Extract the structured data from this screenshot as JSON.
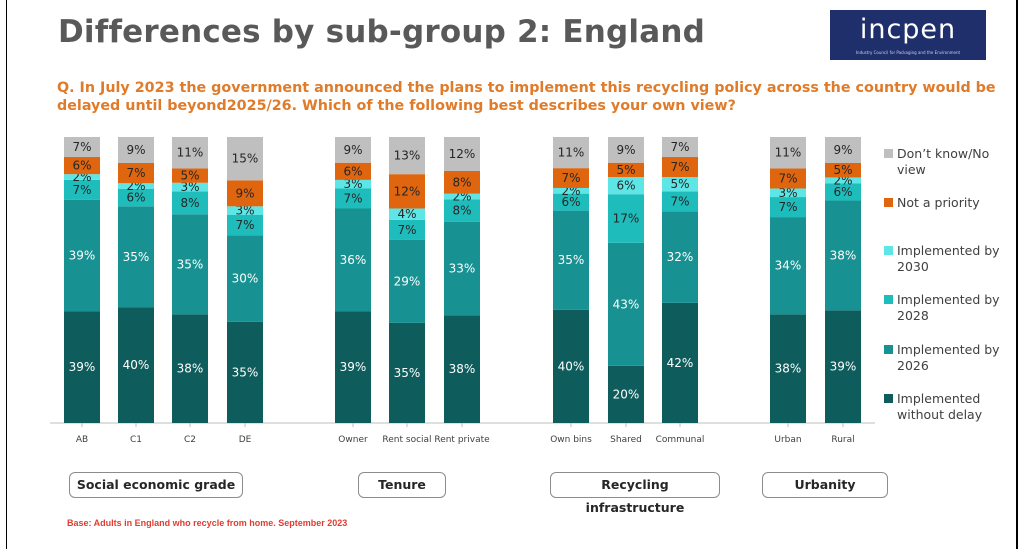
{
  "page": {
    "title": "Differences by sub-group 2: England",
    "logo_text": "incpen",
    "logo_subtext": "Industry Council for Packaging and the Environment",
    "question": "Q. In July 2023 the government announced the plans to implement this recycling policy across the country would be delayed until beyond2025/26. Which of the following best describes your own view?",
    "base_note": "Base: Adults in England who recycle from home. September 2023"
  },
  "groups": [
    {
      "label": "Social economic grade"
    },
    {
      "label": "Tenure"
    },
    {
      "label": "Recycling infrastructure"
    },
    {
      "label": "Urbanity"
    }
  ],
  "chart_data": {
    "type": "bar",
    "stacked": true,
    "percent_labels": true,
    "categories": [
      "AB",
      "C1",
      "C2",
      "DE",
      "Owner",
      "Rent social",
      "Rent private",
      "Own bins",
      "Shared",
      "Communal",
      "Urban",
      "Rural"
    ],
    "series": [
      {
        "name": "Implemented without delay",
        "color": "#0f5c5c",
        "values": [
          39,
          40,
          38,
          35,
          39,
          35,
          38,
          40,
          20,
          42,
          38,
          39
        ]
      },
      {
        "name": "Implemented by 2026",
        "color": "#179191",
        "values": [
          39,
          35,
          35,
          30,
          36,
          29,
          33,
          35,
          43,
          32,
          34,
          38
        ]
      },
      {
        "name": "Implemented by 2028",
        "color": "#1fbcbc",
        "values": [
          7,
          6,
          8,
          7,
          7,
          7,
          8,
          6,
          17,
          7,
          7,
          6
        ]
      },
      {
        "name": "Implemented by 2030",
        "color": "#5ee6e6",
        "values": [
          2,
          2,
          3,
          3,
          3,
          4,
          2,
          2,
          6,
          5,
          3,
          2
        ]
      },
      {
        "name": "Not a priority",
        "color": "#e0650f",
        "values": [
          6,
          7,
          5,
          9,
          6,
          12,
          8,
          7,
          5,
          7,
          7,
          5
        ]
      },
      {
        "name": "Don’t know/No view",
        "color": "#bfbfbf",
        "values": [
          7,
          9,
          11,
          15,
          9,
          13,
          12,
          11,
          9,
          7,
          11,
          9
        ]
      }
    ],
    "ylim": [
      0,
      100
    ]
  }
}
